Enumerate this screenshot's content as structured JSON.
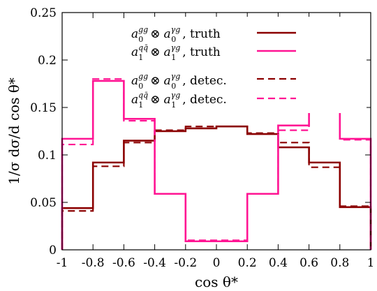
{
  "chart_data": {
    "type": "line",
    "step": true,
    "xlabel": "cos θ*",
    "ylabel": "1/σ dσ/d cos θ*",
    "xlim": [
      -1,
      1
    ],
    "ylim": [
      0,
      0.25
    ],
    "grid": false,
    "legend_position": "top-right",
    "bin_edges": [
      -1,
      -0.8,
      -0.6,
      -0.4,
      -0.2,
      0,
      0.2,
      0.4,
      0.6,
      0.8,
      1
    ],
    "x_ticks": [
      {
        "value": -1,
        "label": "-1"
      },
      {
        "value": -0.8,
        "label": "-0.8"
      },
      {
        "value": -0.6,
        "label": "-0.6"
      },
      {
        "value": -0.4,
        "label": "-0.4"
      },
      {
        "value": -0.2,
        "label": "-0.2"
      },
      {
        "value": 0,
        "label": "0"
      },
      {
        "value": 0.2,
        "label": "0.2"
      },
      {
        "value": 0.4,
        "label": "0.4"
      },
      {
        "value": 0.6,
        "label": "0.6"
      },
      {
        "value": 0.8,
        "label": "0.8"
      },
      {
        "value": 1,
        "label": "1"
      }
    ],
    "y_ticks": [
      {
        "value": 0,
        "label": "0"
      },
      {
        "value": 0.05,
        "label": "0.05"
      },
      {
        "value": 0.1,
        "label": "0.1"
      },
      {
        "value": 0.15,
        "label": "0.15"
      },
      {
        "value": 0.2,
        "label": "0.2"
      },
      {
        "value": 0.25,
        "label": "0.25"
      }
    ],
    "series": [
      {
        "name": "gg truth",
        "legend_label": ", truth",
        "color": "#8b0000",
        "dashed": false,
        "values": [
          0.044,
          0.092,
          0.115,
          0.125,
          0.128,
          0.13,
          0.122,
          0.108,
          0.092,
          0.045
        ]
      },
      {
        "name": "qq truth",
        "legend_label": ", truth",
        "color": "#ff1493",
        "dashed": false,
        "values": [
          0.117,
          0.178,
          0.138,
          0.059,
          0.009,
          0.009,
          0.059,
          0.131,
          0.182,
          0.117
        ]
      },
      {
        "name": "gg detec",
        "legend_label": ", detec.",
        "color": "#8b0000",
        "dashed": true,
        "values": [
          0.041,
          0.088,
          0.113,
          0.126,
          0.13,
          0.13,
          0.123,
          0.113,
          0.087,
          0.046
        ]
      },
      {
        "name": "qq detec",
        "legend_label": ", detec.",
        "color": "#ff1493",
        "dashed": true,
        "values": [
          0.111,
          0.18,
          0.136,
          0.059,
          0.01,
          0.01,
          0.059,
          0.126,
          0.187,
          0.116
        ]
      }
    ]
  }
}
